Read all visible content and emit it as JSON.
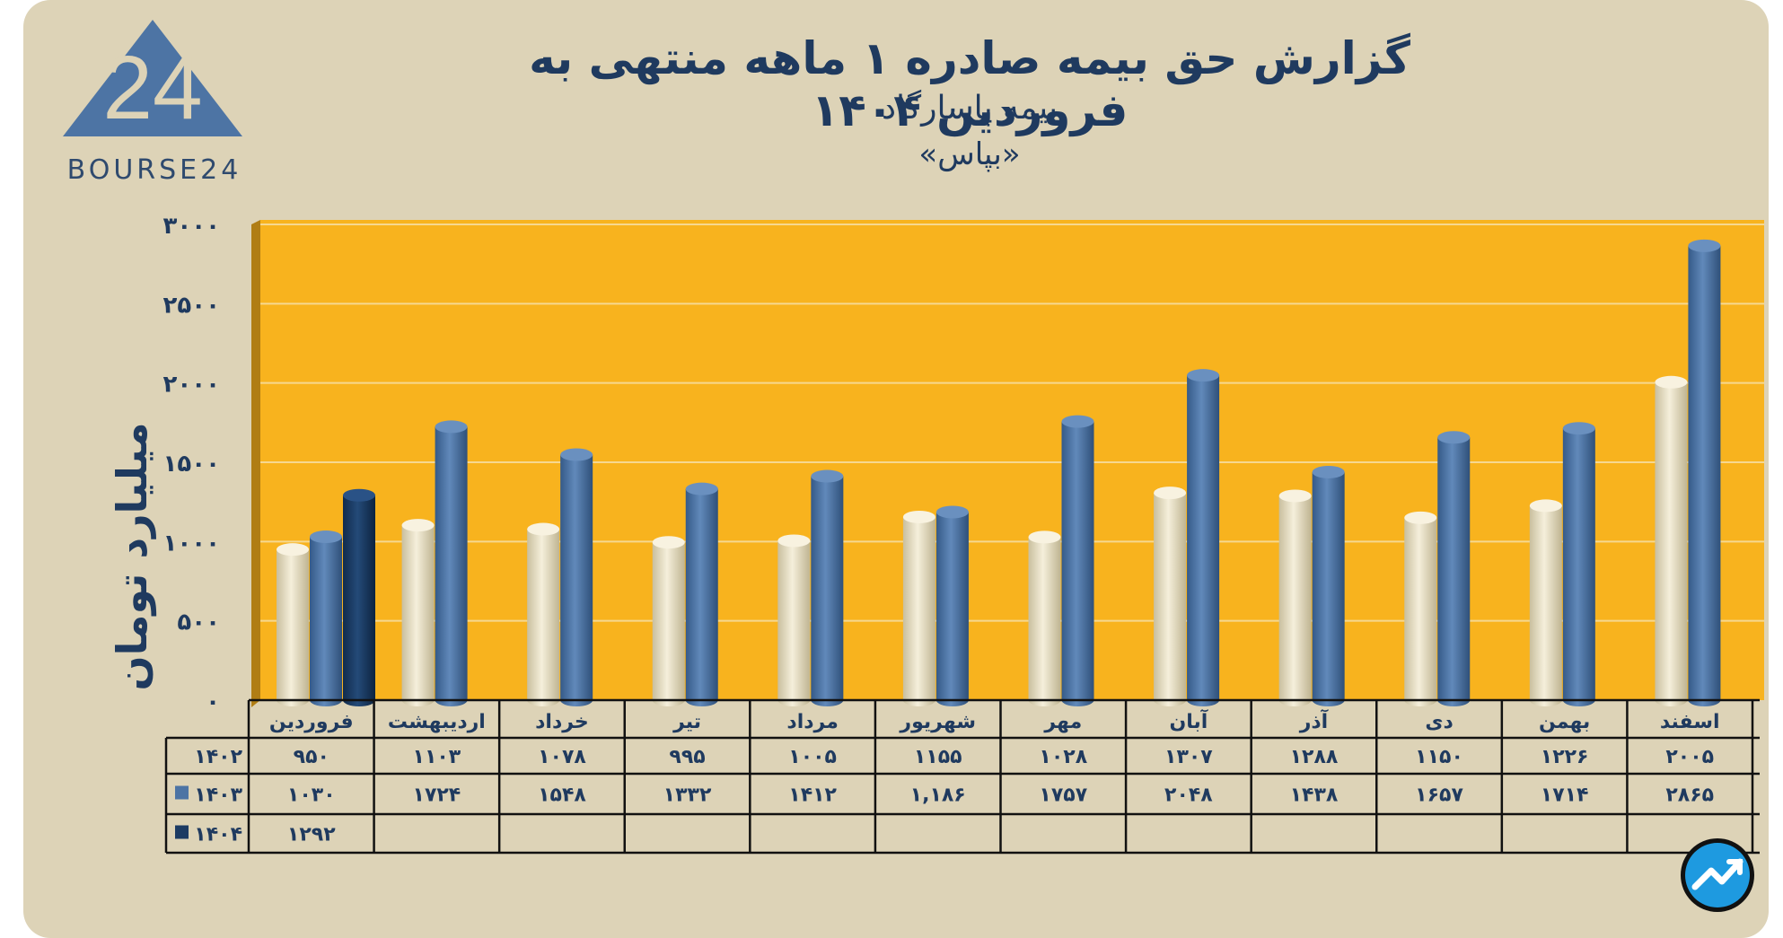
{
  "chart_data": {
    "type": "bar",
    "title": "گزارش حق بیمه صادره ۱ ماهه منتهی به فروردین ۱۴۰۴",
    "subtitle": "بیمه پاسارگاد",
    "ticker": "«بپاس»",
    "ylabel": "میلیارد تومان",
    "ylim": [
      0,
      3000
    ],
    "yticks": [
      0,
      500,
      1000,
      1500,
      2000,
      2500,
      3000
    ],
    "ytick_labels": [
      "۰",
      "۵۰۰",
      "۱۰۰۰",
      "۱۵۰۰",
      "۲۰۰۰",
      "۲۵۰۰",
      "۳۰۰۰"
    ],
    "categories": [
      "فروردین",
      "اردیبهشت",
      "خرداد",
      "تیر",
      "مرداد",
      "شهریور",
      "مهر",
      "آبان",
      "آذر",
      "دی",
      "بهمن",
      "اسفند"
    ],
    "series": [
      {
        "name": "۱۴۰۲",
        "color": "#e9dfc2",
        "values": [
          950,
          1103,
          1078,
          995,
          1005,
          1155,
          1028,
          1307,
          1288,
          1150,
          1226,
          2005
        ],
        "labels": [
          "۹۵۰",
          "۱۱۰۳",
          "۱۰۷۸",
          "۹۹۵",
          "۱۰۰۵",
          "۱۱۵۵",
          "۱۰۲۸",
          "۱۳۰۷",
          "۱۲۸۸",
          "۱۱۵۰",
          "۱۲۲۶",
          "۲۰۰۵"
        ]
      },
      {
        "name": "۱۴۰۳",
        "color": "#4d74a4",
        "values": [
          1030,
          1724,
          1548,
          1332,
          1412,
          1186,
          1757,
          2048,
          1438,
          1657,
          1714,
          2865
        ],
        "labels": [
          "۱۰۳۰",
          "۱۷۲۴",
          "۱۵۴۸",
          "۱۳۳۲",
          "۱۴۱۲",
          "۱,۱۸۶",
          "۱۷۵۷",
          "۲۰۴۸",
          "۱۴۳۸",
          "۱۶۵۷",
          "۱۷۱۴",
          "۲۸۶۵"
        ]
      },
      {
        "name": "۱۴۰۴",
        "color": "#1c3b63",
        "values": [
          1292,
          null,
          null,
          null,
          null,
          null,
          null,
          null,
          null,
          null,
          null,
          null
        ],
        "labels": [
          "۱۲۹۲",
          "",
          "",
          "",
          "",
          "",
          "",
          "",
          "",
          "",
          "",
          ""
        ]
      }
    ],
    "grid": true,
    "legend": "table-left"
  },
  "brand": {
    "logo_text": "BOURSE24",
    "logo_digits": "24"
  },
  "colors": {
    "plot_bg": "#f8b31e",
    "card_bg": "#ddd3b7",
    "text": "#1f3a5f"
  }
}
